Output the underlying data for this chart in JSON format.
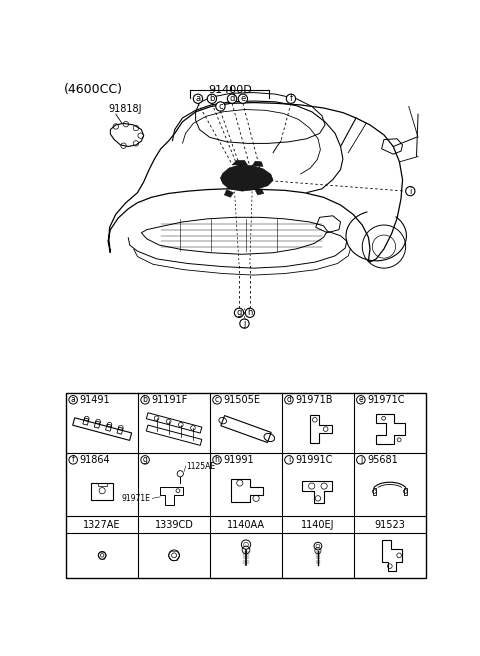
{
  "title": "(4600CC)",
  "main_label": "91400D",
  "part_label_91818J": "91818J",
  "bg_color": "#ffffff",
  "font_size_title": 9,
  "font_size_code": 7.5,
  "font_size_label": 7,
  "row1_labels": [
    [
      "a",
      "91491"
    ],
    [
      "b",
      "91191F"
    ],
    [
      "c",
      "91505E"
    ],
    [
      "d",
      "91971B"
    ],
    [
      "e",
      "91971C"
    ]
  ],
  "row2_labels": [
    [
      "f",
      "91864"
    ],
    [
      "g",
      ""
    ],
    [
      "h",
      "91991"
    ],
    [
      "i",
      "91991C"
    ],
    [
      "j",
      "95681"
    ]
  ],
  "fastener_labels": [
    "1327AE",
    "1339CD",
    "1140AA",
    "1140EJ",
    "91523"
  ]
}
